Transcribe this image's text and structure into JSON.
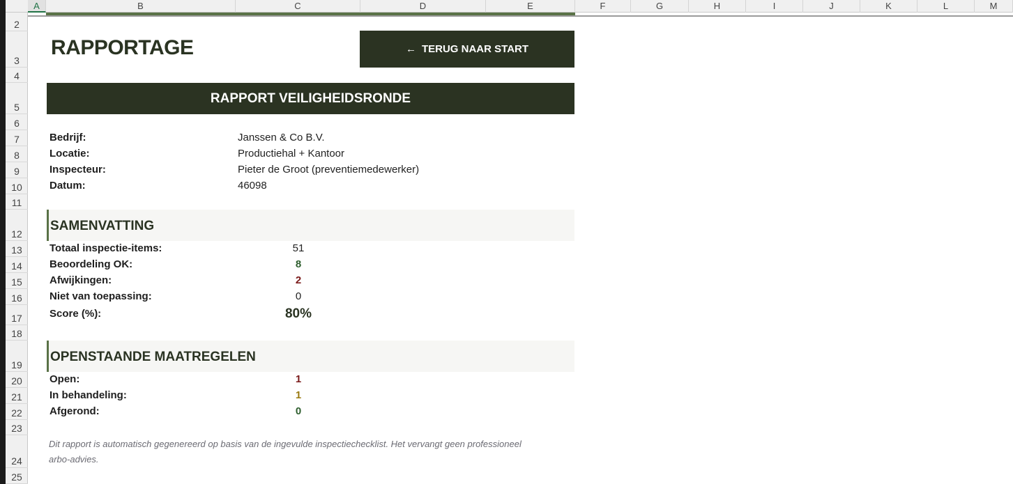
{
  "columns": [
    "A",
    "B",
    "C",
    "D",
    "E",
    "F",
    "G",
    "H",
    "I",
    "J",
    "K",
    "L",
    "M"
  ],
  "rows": [
    "2",
    "3",
    "4",
    "5",
    "6",
    "7",
    "8",
    "9",
    "10",
    "11",
    "12",
    "13",
    "14",
    "15",
    "16",
    "17",
    "18",
    "19",
    "20",
    "21",
    "22",
    "23",
    "24",
    "25"
  ],
  "header": {
    "title": "RAPPORTAGE",
    "back_button": "TERUG NAAR START",
    "back_icon": "arrow-left-icon"
  },
  "banner": "RAPPORT VEILIGHEIDSRONDE",
  "info": [
    {
      "label": "Bedrijf:",
      "value": "Janssen & Co B.V."
    },
    {
      "label": "Locatie:",
      "value": "Productiehal + Kantoor"
    },
    {
      "label": "Inspecteur:",
      "value": "Pieter de Groot (preventiemedewerker)"
    },
    {
      "label": "Datum:",
      "value": "46098"
    }
  ],
  "summary": {
    "title": "SAMENVATTING",
    "items": [
      {
        "label": "Totaal inspectie-items:",
        "value": "51",
        "color": "#222222"
      },
      {
        "label": "Beoordeling OK:",
        "value": "8",
        "color": "#2e5e2e"
      },
      {
        "label": "Afwijkingen:",
        "value": "2",
        "color": "#7a1a1a"
      },
      {
        "label": "Niet van toepassing:",
        "value": "0",
        "color": "#222222"
      },
      {
        "label": "Score (%):",
        "value": "80%",
        "color": "#2a3322"
      }
    ]
  },
  "measures": {
    "title": "OPENSTAANDE MAATREGELEN",
    "items": [
      {
        "label": "Open:",
        "value": "1",
        "color": "#7a1a1a"
      },
      {
        "label": "In behandeling:",
        "value": "1",
        "color": "#9a7a10"
      },
      {
        "label": "Afgerond:",
        "value": "0",
        "color": "#2e5e2e"
      }
    ]
  },
  "note": "Dit rapport is automatisch gegenereerd op basis van de ingevulde inspectiechecklist. Het vervangt geen professioneel arbo-advies."
}
